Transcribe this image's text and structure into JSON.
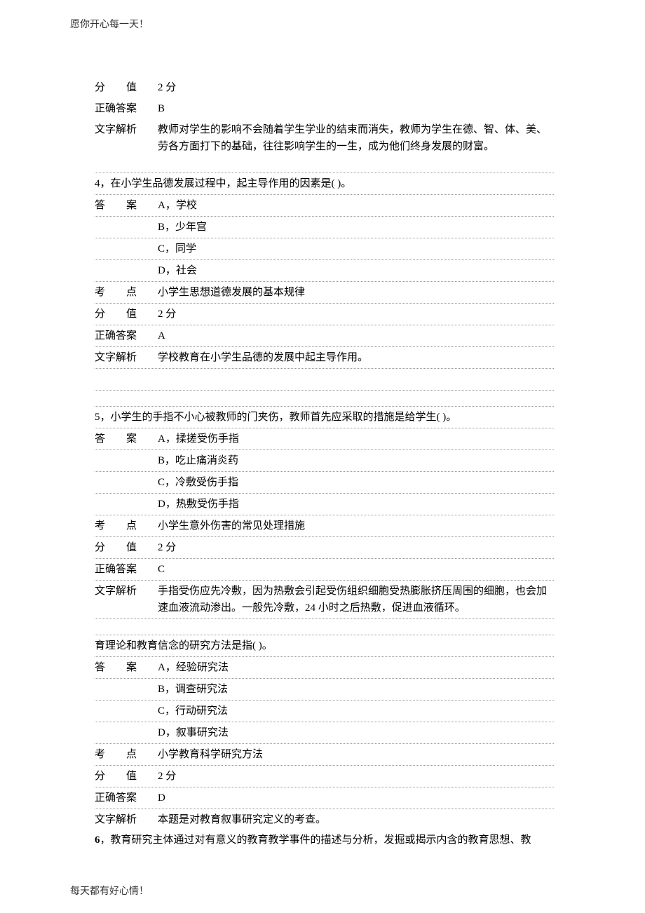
{
  "header": "愿你开心每一天！",
  "footer": "每天都有好心情！",
  "labels": {
    "score": "分　　值",
    "correct": "正确答案",
    "analysis": "文字解析",
    "answer": "答　　案",
    "topic": "考　　点"
  },
  "q3": {
    "score": "2 分",
    "correct": "B",
    "analysis": "教师对学生的影响不会随着学生学业的结束而消失，教师为学生在德、智、体、美、劳各方面打下的基础，往往影响学生的一生，成为他们终身发展的财富。"
  },
  "q4": {
    "question": "4，在小学生品德发展过程中，起主导作用的因素是(  )。",
    "optA": "A，学校",
    "optB": "B，少年宫",
    "optC": "C，同学",
    "optD": "D，社会",
    "topic": "小学生思想道德发展的基本规律",
    "score": "2 分",
    "correct": "A",
    "analysis": "学校教育在小学生品德的发展中起主导作用。"
  },
  "q5": {
    "question": "5，小学生的手指不小心被教师的门夹伤，教师首先应采取的措施是给学生(  )。",
    "optA": "A，揉搓受伤手指",
    "optB": "B，吃止痛消炎药",
    "optC": "C，冷敷受伤手指",
    "optD": "D，热敷受伤手指",
    "topic": "小学生意外伤害的常见处理措施",
    "score": "2 分",
    "correct": "C",
    "analysis": "手指受伤应先冷敷，因为热敷会引起受伤组织细胞受热膨胀挤压周围的细胞，也会加速血液流动渗出。一般先冷敷，24 小时之后热敷，促进血液循环。"
  },
  "q6a": {
    "question": "育理论和教育信念的研究方法是指(  )。",
    "optA": "A，经验研究法",
    "optB": "B，调查研究法",
    "optC": "C，行动研究法",
    "optD": "D，叙事研究法",
    "topic": "小学教育科学研究方法",
    "score": "2 分",
    "correct": "D",
    "analysis": "本题是对教育叙事研究定义的考查。"
  },
  "q6b": {
    "text_prefix": "6",
    "text": "，教育研究主体通过对有意义的教育教学事件的描述与分析，发掘或揭示内含的教育思想、教"
  }
}
